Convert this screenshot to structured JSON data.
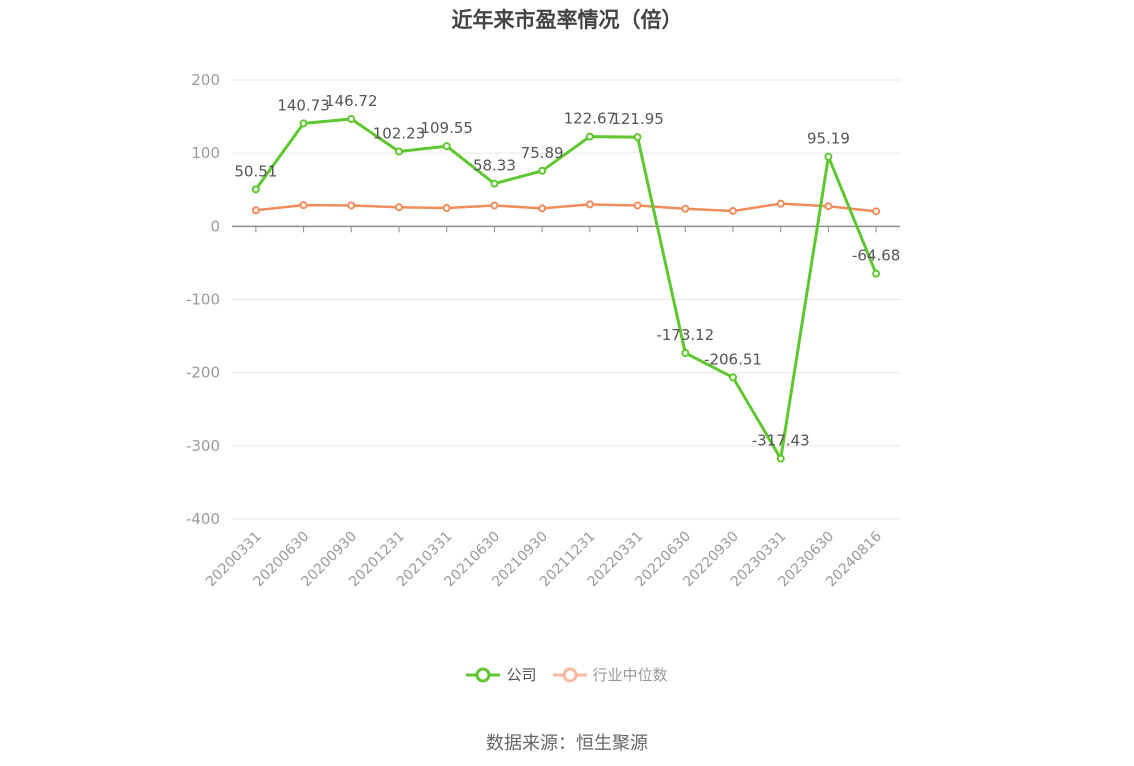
{
  "title": "近年来市盈率情况（倍）",
  "source": "数据来源：恒生聚源",
  "colors": {
    "company": "#5ec72f",
    "industry": "#ef8c5a",
    "industry_legend": "#f9b8a0",
    "grid": "#e6e6e6",
    "axis": "#8c8c8c"
  },
  "chart_data": {
    "type": "line",
    "title": "近年来市盈率情况（倍）",
    "x": [
      "20200331",
      "20200630",
      "20200930",
      "20201231",
      "20210331",
      "20210630",
      "20210930",
      "20211231",
      "20220331",
      "20220630",
      "20220930",
      "20230331",
      "20230630",
      "20240816"
    ],
    "ylim": [
      -400,
      200
    ],
    "yticks": [
      200,
      100,
      0,
      -100,
      -200,
      -300,
      -400
    ],
    "grid": true,
    "legend_position": "bottom",
    "series": [
      {
        "name": "公司",
        "values": [
          50.51,
          140.73,
          146.72,
          102.23,
          109.55,
          58.33,
          75.89,
          122.67,
          121.95,
          -173.12,
          -206.51,
          -317.43,
          95.19,
          -64.68
        ],
        "labels": [
          "50.51",
          "140.73",
          "146.72",
          "102.23",
          "109.55",
          "58.33",
          "75.89",
          "122.67",
          "121.95",
          "-173.12",
          "-206.51",
          "-317.43",
          "95.19",
          "-64.68"
        ]
      },
      {
        "name": "行业中位数",
        "values": [
          22,
          29,
          28.5,
          26,
          25,
          28.5,
          24.5,
          30,
          28.5,
          24,
          21,
          31,
          27.5,
          20.5
        ]
      }
    ]
  }
}
